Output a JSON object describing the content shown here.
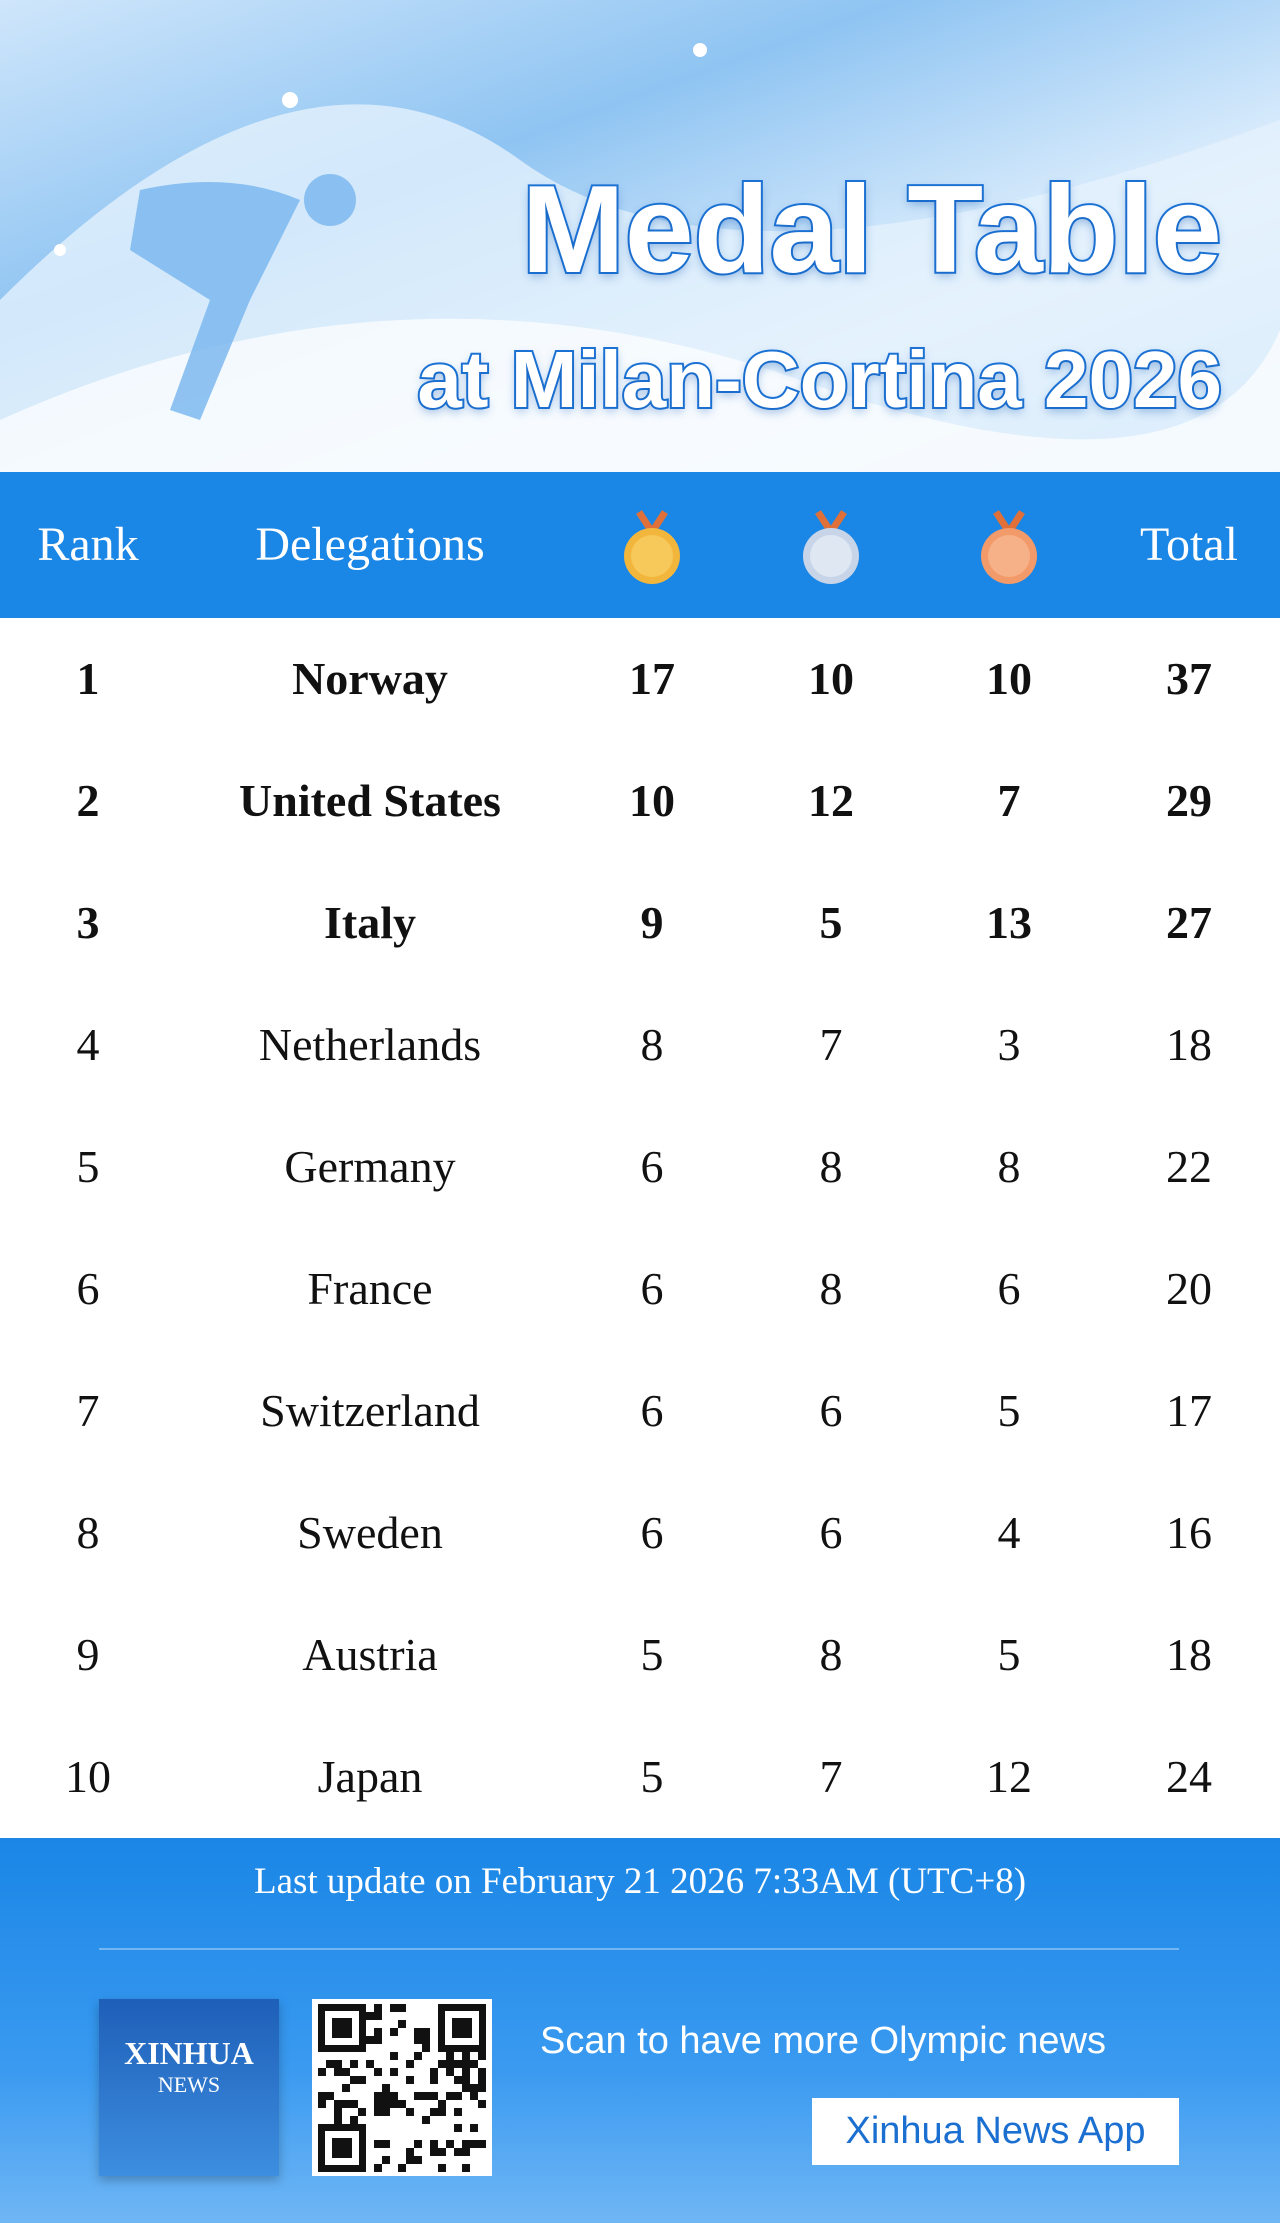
{
  "header": {
    "title": "Medal Table",
    "subtitle": "at Milan-Cortina 2026"
  },
  "table": {
    "columns": [
      "Rank",
      "Delegations",
      "Total"
    ],
    "rows": [
      [
        "1",
        "Norway",
        "17",
        "10",
        "10",
        "37"
      ],
      [
        "2",
        "United States",
        "10",
        "12",
        "7",
        "29"
      ],
      [
        "3",
        "Italy",
        "9",
        "5",
        "13",
        "27"
      ],
      [
        "4",
        "Netherlands",
        "8",
        "7",
        "3",
        "18"
      ],
      [
        "5",
        "Germany",
        "6",
        "8",
        "8",
        "22"
      ],
      [
        "6",
        "France",
        "6",
        "8",
        "6",
        "20"
      ],
      [
        "7",
        "Switzerland",
        "6",
        "6",
        "5",
        "17"
      ],
      [
        "8",
        "Sweden",
        "6",
        "6",
        "4",
        "16"
      ],
      [
        "9",
        "Austria",
        "5",
        "8",
        "5",
        "18"
      ],
      [
        "10",
        "Japan",
        "5",
        "7",
        "12",
        "24"
      ]
    ]
  },
  "footer": {
    "update": "Last update on February 21 2026 7:33AM (UTC+8)",
    "logo": [
      "XINHUA",
      "NEWS"
    ],
    "promo": "Scan to have more Olympic news",
    "button": "Xinhua News App"
  }
}
